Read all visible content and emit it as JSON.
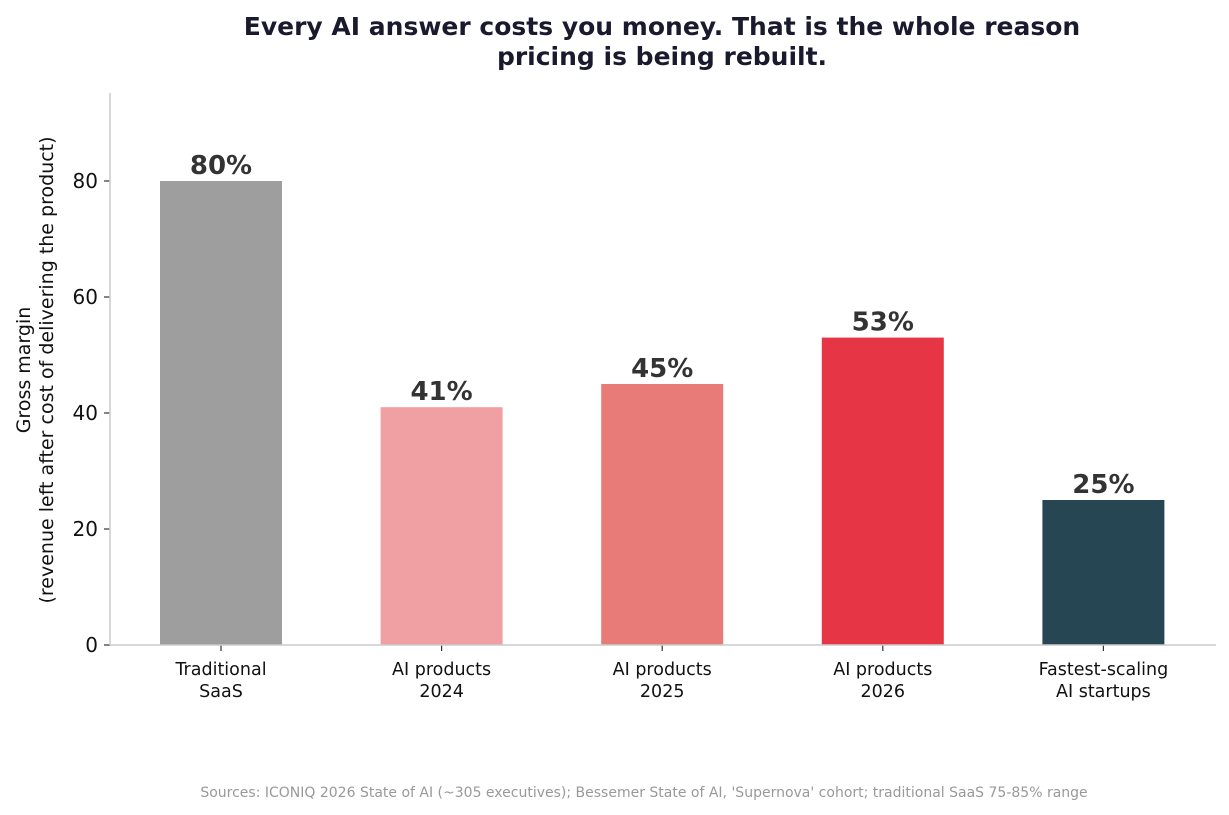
{
  "chart_data": {
    "type": "bar",
    "title": [
      "Every AI answer costs you money. That is the whole reason",
      "pricing is being rebuilt."
    ],
    "ylabel": [
      "Gross margin",
      "(revenue left after cost of delivering the product)"
    ],
    "xlabel": "",
    "categories": [
      [
        "Traditional",
        "SaaS"
      ],
      [
        "AI products",
        "2024"
      ],
      [
        "AI products",
        "2025"
      ],
      [
        "AI products",
        "2026"
      ],
      [
        "Fastest-scaling",
        "AI startups"
      ]
    ],
    "values": [
      80,
      41,
      45,
      53,
      25
    ],
    "data_labels": [
      "80%",
      "41%",
      "45%",
      "53%",
      "25%"
    ],
    "colors": [
      "#9e9e9e",
      "#f0a0a2",
      "#e87a78",
      "#e63646",
      "#264653"
    ],
    "ylim": [
      0,
      95
    ],
    "yticks": [
      0,
      20,
      40,
      60,
      80
    ],
    "grid": false,
    "legend": "none",
    "source": "Sources: ICONIQ 2026 State of AI (~305 executives); Bessemer State of AI, 'Supernova' cohort; traditional SaaS 75-85% range"
  }
}
